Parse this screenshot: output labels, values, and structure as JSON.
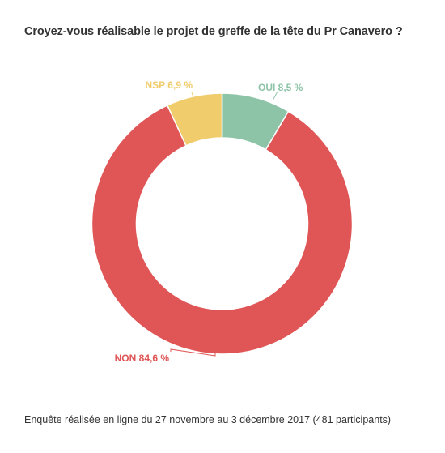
{
  "title": "Croyez-vous réalisable le projet de greffe de la tête du Pr Canavero ?",
  "footnote": "Enquête réalisée en ligne du 27 novembre au 3 décembre 2017 (481 participants)",
  "chart_data": {
    "type": "pie",
    "title": "Croyez-vous réalisable le projet de greffe de la tête du Pr Canavero ?",
    "slices": [
      {
        "label": "OUI",
        "value": 8.5,
        "display": "OUI 8,5 %",
        "color": "#8dc3a7"
      },
      {
        "label": "NON",
        "value": 84.6,
        "display": "NON 84,6 %",
        "color": "#e05656"
      },
      {
        "label": "NSP",
        "value": 6.9,
        "display": "NSP 6,9 %",
        "color": "#f0cc6c"
      }
    ],
    "unit": "%",
    "donut": true
  }
}
